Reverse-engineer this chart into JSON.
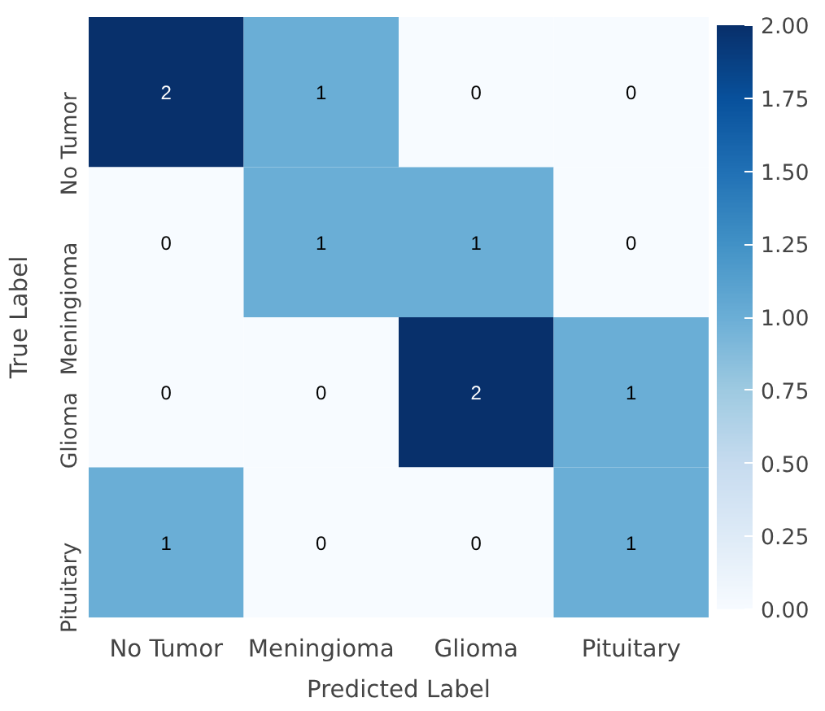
{
  "chart_data": {
    "type": "heatmap",
    "xlabel": "Predicted Label",
    "ylabel": "True Label",
    "categories": [
      "No Tumor",
      "Meningioma",
      "Glioma",
      "Pituitary"
    ],
    "y_categories": [
      "No Tumor",
      "Meningioma",
      "Glioma",
      "Pituitary"
    ],
    "cells": [
      [
        2,
        1,
        0,
        0
      ],
      [
        0,
        1,
        1,
        0
      ],
      [
        0,
        0,
        2,
        1
      ],
      [
        1,
        0,
        0,
        1
      ]
    ],
    "clim": [
      0,
      2
    ],
    "cticks": [
      {
        "value": 0,
        "label": "0.00"
      },
      {
        "value": 0.25,
        "label": "0.25"
      },
      {
        "value": 0.5,
        "label": "0.50"
      },
      {
        "value": 0.75,
        "label": "0.75"
      },
      {
        "value": 1,
        "label": "1.00"
      },
      {
        "value": 1.25,
        "label": "1.25"
      },
      {
        "value": 1.5,
        "label": "1.50"
      },
      {
        "value": 1.75,
        "label": "1.75"
      },
      {
        "value": 2,
        "label": "2.00"
      }
    ],
    "data_labels": true
  }
}
